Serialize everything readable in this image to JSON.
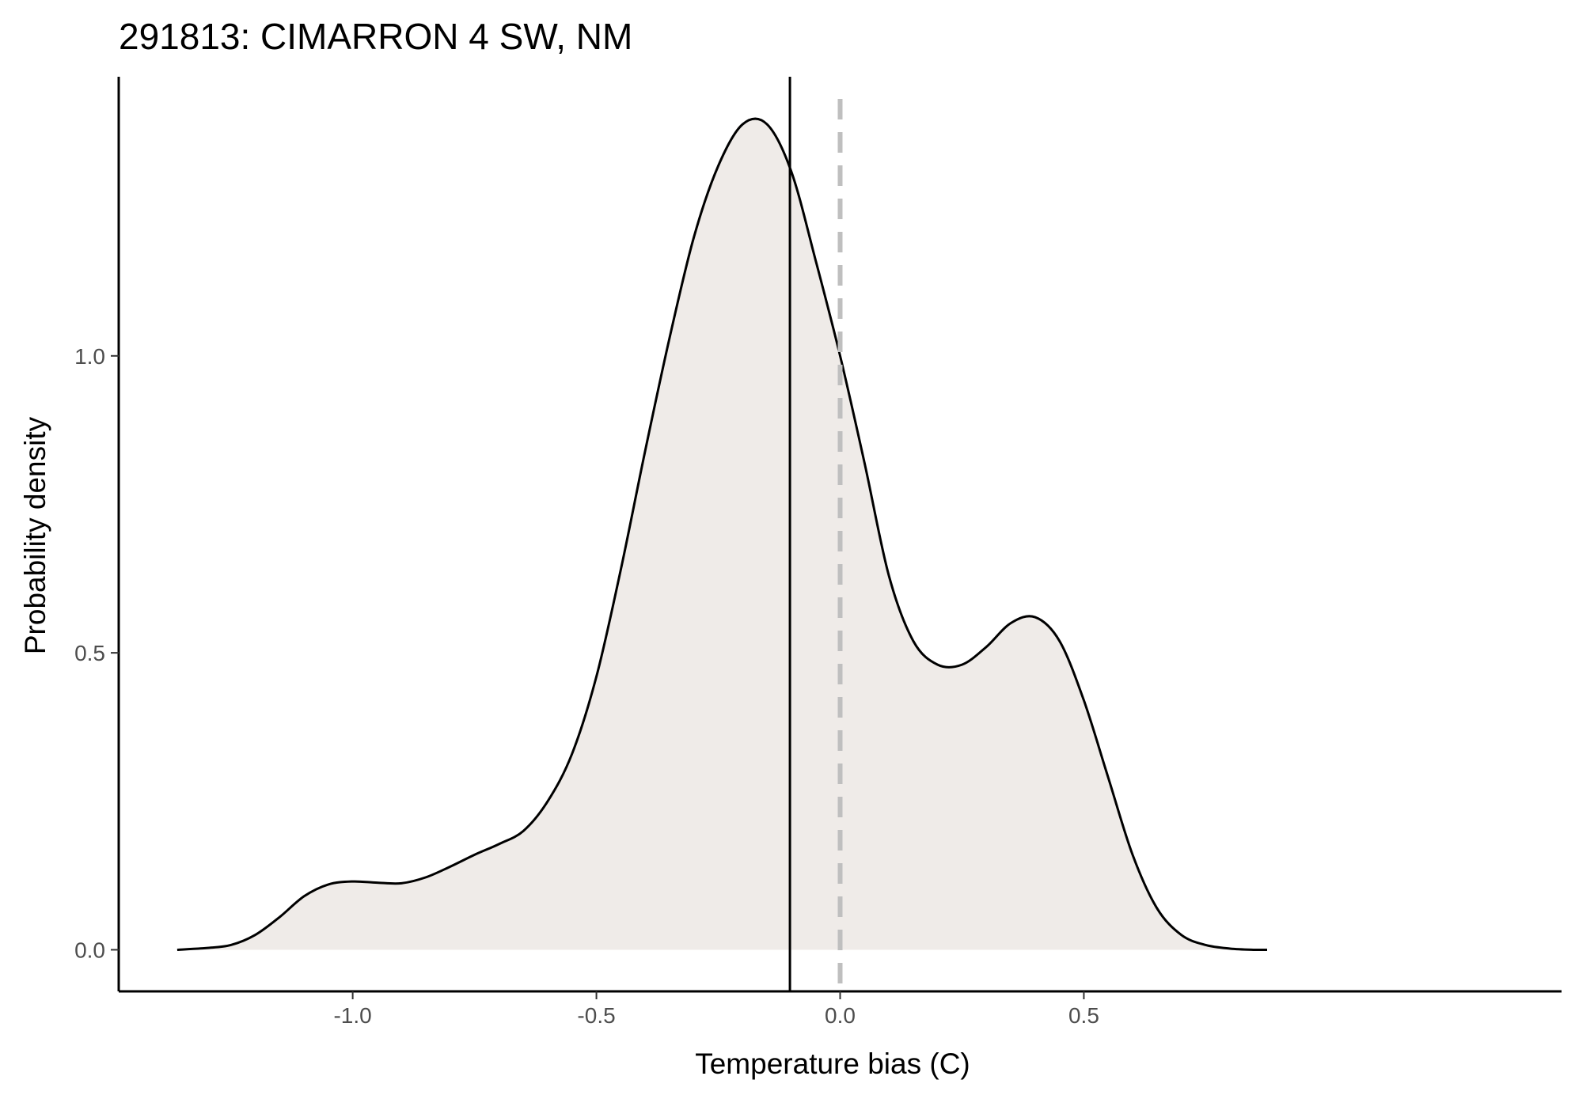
{
  "chart_data": {
    "type": "area",
    "title": "291813: CIMARRON 4 SW, NM",
    "xlabel": "Temperature bias (C)",
    "ylabel": "Probability density",
    "xlim": [
      -1.48,
      1.48
    ],
    "ylim": [
      -0.07,
      1.47
    ],
    "x_ticks": [
      -1.0,
      -0.5,
      0.0,
      0.5
    ],
    "x_tick_labels": [
      "-1.0",
      "-0.5",
      "0.0",
      "0.5"
    ],
    "y_ticks": [
      0.0,
      0.5,
      1.0
    ],
    "y_tick_labels": [
      "0.0",
      "0.5",
      "1.0"
    ],
    "grid": false,
    "legend": "none",
    "colors": {
      "fill": "#efebe8",
      "curve": "#000000",
      "mean_line": "#000000",
      "zero_line": "#bfbfbf"
    },
    "reference_lines": [
      {
        "x": -0.103,
        "style": "solid"
      },
      {
        "x": 0.0,
        "style": "dashed"
      }
    ],
    "x": [
      -1.36,
      -1.3,
      -1.25,
      -1.2,
      -1.15,
      -1.1,
      -1.05,
      -1.0,
      -0.95,
      -0.9,
      -0.85,
      -0.8,
      -0.75,
      -0.7,
      -0.65,
      -0.6,
      -0.55,
      -0.5,
      -0.45,
      -0.4,
      -0.35,
      -0.3,
      -0.25,
      -0.2,
      -0.15,
      -0.1,
      -0.05,
      0.0,
      0.05,
      0.1,
      0.15,
      0.2,
      0.25,
      0.3,
      0.35,
      0.4,
      0.45,
      0.5,
      0.55,
      0.6,
      0.65,
      0.7,
      0.75,
      0.8,
      0.85,
      0.876
    ],
    "y": [
      0.0,
      0.003,
      0.008,
      0.025,
      0.055,
      0.09,
      0.11,
      0.115,
      0.113,
      0.112,
      0.122,
      0.14,
      0.16,
      0.178,
      0.2,
      0.25,
      0.33,
      0.46,
      0.64,
      0.84,
      1.03,
      1.2,
      1.32,
      1.39,
      1.39,
      1.31,
      1.16,
      1.0,
      0.82,
      0.63,
      0.52,
      0.48,
      0.48,
      0.51,
      0.55,
      0.56,
      0.52,
      0.42,
      0.29,
      0.16,
      0.07,
      0.025,
      0.008,
      0.002,
      0.0,
      0.0
    ]
  }
}
